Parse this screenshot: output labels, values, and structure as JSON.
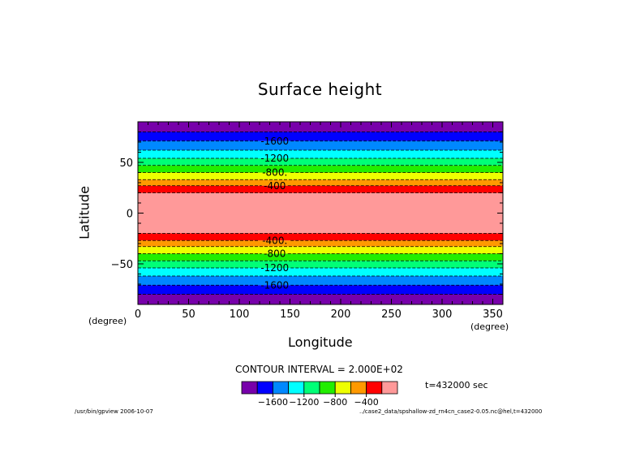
{
  "chart_data": {
    "type": "contour",
    "title": "Surface height",
    "xlabel": "Longitude",
    "ylabel": "Latitude",
    "x_unit": "(degree)",
    "y_unit": "(degree)",
    "xlim": [
      0,
      360
    ],
    "ylim": [
      -90,
      90
    ],
    "x_ticks": [
      "0",
      "50",
      "100",
      "150",
      "200",
      "250",
      "300",
      "350"
    ],
    "x_tick_values": [
      0,
      50,
      100,
      150,
      200,
      250,
      300,
      350
    ],
    "y_ticks": [
      "50",
      "0",
      "−50"
    ],
    "y_tick_values": [
      50,
      0,
      -50
    ],
    "contour_interval_text": "CONTOUR INTERVAL = 2.000E+02",
    "time_text": "t=432000 sec",
    "levels": [
      -1800,
      -1600,
      -1400,
      -1200,
      -1000,
      -800,
      -600,
      -400,
      -200
    ],
    "colors": [
      "#7700aa",
      "#0000ff",
      "#0088ff",
      "#00ffff",
      "#00ff77",
      "#22ee00",
      "#eeff00",
      "#ff9900",
      "#ff0000",
      "#ff9999"
    ],
    "bands_north": [
      {
        "lat_min": 80,
        "lat_max": 90,
        "color": "#7700aa"
      },
      {
        "lat_min": 71,
        "lat_max": 80,
        "color": "#0000ff"
      },
      {
        "lat_min": 62,
        "lat_max": 71,
        "color": "#0088ff"
      },
      {
        "lat_min": 54,
        "lat_max": 62,
        "color": "#00ffff"
      },
      {
        "lat_min": 47,
        "lat_max": 54,
        "color": "#00ff77"
      },
      {
        "lat_min": 40,
        "lat_max": 47,
        "color": "#22ee00"
      },
      {
        "lat_min": 33,
        "lat_max": 40,
        "color": "#eeff00"
      },
      {
        "lat_min": 27,
        "lat_max": 33,
        "color": "#ff9900"
      },
      {
        "lat_min": 20,
        "lat_max": 27,
        "color": "#ff0000"
      },
      {
        "lat_min": -20,
        "lat_max": 20,
        "color": "#ff9999"
      }
    ],
    "bands_south": [
      {
        "lat_min": -27,
        "lat_max": -20,
        "color": "#ff0000"
      },
      {
        "lat_min": -33,
        "lat_max": -27,
        "color": "#ff9900"
      },
      {
        "lat_min": -40,
        "lat_max": -33,
        "color": "#eeff00"
      },
      {
        "lat_min": -47,
        "lat_max": -40,
        "color": "#22ee00"
      },
      {
        "lat_min": -54,
        "lat_max": -47,
        "color": "#00ff77"
      },
      {
        "lat_min": -62,
        "lat_max": -54,
        "color": "#00ffff"
      },
      {
        "lat_min": -71,
        "lat_max": -62,
        "color": "#0088ff"
      },
      {
        "lat_min": -80,
        "lat_max": -71,
        "color": "#0000ff"
      },
      {
        "lat_min": -90,
        "lat_max": -80,
        "color": "#7700aa"
      }
    ],
    "contour_lines": [
      {
        "lat": 80,
        "label": ""
      },
      {
        "lat": 71,
        "label": "-1600"
      },
      {
        "lat": 62,
        "label": ""
      },
      {
        "lat": 54,
        "label": "-1200"
      },
      {
        "lat": 47,
        "label": ""
      },
      {
        "lat": 40,
        "label": "-800."
      },
      {
        "lat": 33,
        "label": ""
      },
      {
        "lat": 27,
        "label": "-400"
      },
      {
        "lat": 20,
        "label": ""
      },
      {
        "lat": -20,
        "label": ""
      },
      {
        "lat": -27,
        "label": "-400."
      },
      {
        "lat": -33,
        "label": ""
      },
      {
        "lat": -40,
        "label": "-800"
      },
      {
        "lat": -47,
        "label": ""
      },
      {
        "lat": -54,
        "label": "-1200"
      },
      {
        "lat": -62,
        "label": ""
      },
      {
        "lat": -71,
        "label": "-1600"
      },
      {
        "lat": -80,
        "label": ""
      }
    ],
    "contour_label_lon": 135,
    "colorbar_labels": [
      {
        "text": "−1600",
        "level_index": 1
      },
      {
        "text": "−1200",
        "level_index": 3
      },
      {
        "text": "−800",
        "level_index": 5
      },
      {
        "text": "−400",
        "level_index": 7
      }
    ]
  },
  "footer": {
    "left": "/usr/bin/gpview  2006-10-07",
    "right": "../case2_data/spshallow-zd_rn4cn_case2-0.05.nc@hel,t=432000"
  }
}
